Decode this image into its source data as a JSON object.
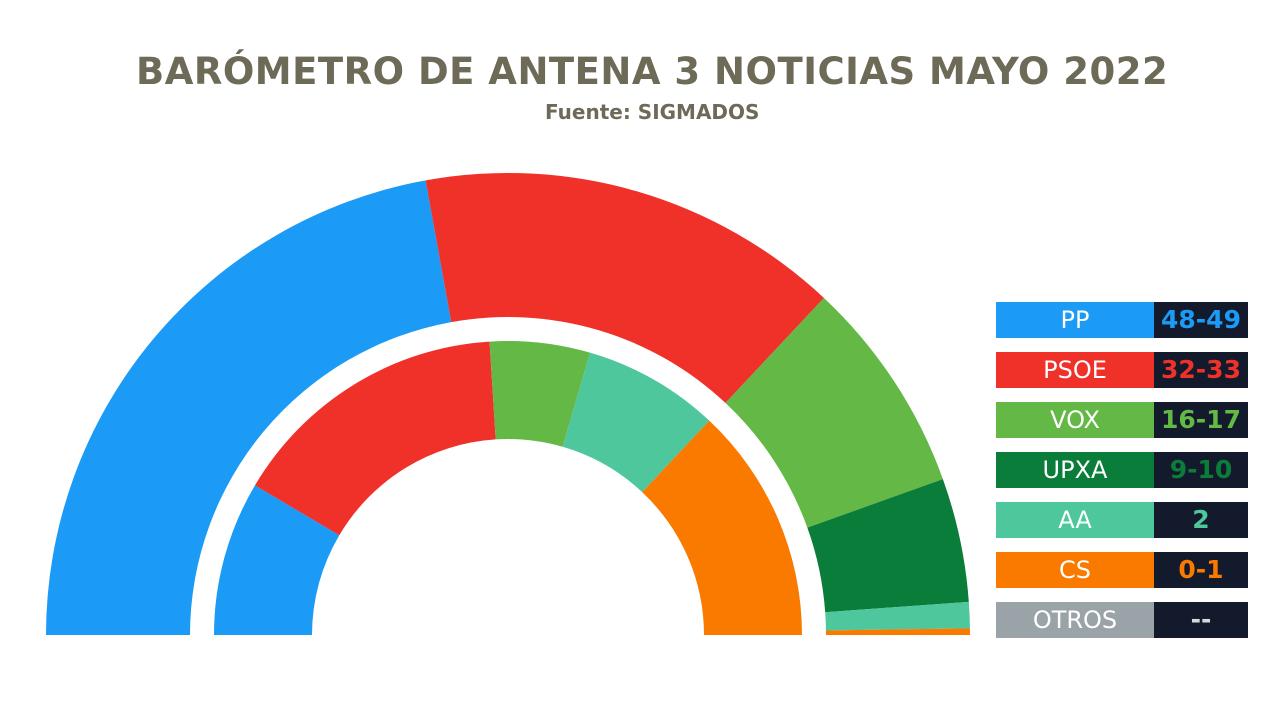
{
  "chart_data": {
    "type": "pie",
    "title": "BARÓMETRO DE ANTENA 3 NOTICIAS MAYO 2022",
    "subtitle": "Fuente: SIGMADOS",
    "rings": [
      {
        "ring": "outer",
        "series": [
          {
            "name": "PP",
            "color": "#1b9af6",
            "value": 48.5
          },
          {
            "name": "PSOE",
            "color": "#ef3129",
            "value": 32.5
          },
          {
            "name": "VOX",
            "color": "#64b846",
            "value": 16.5
          },
          {
            "name": "UPXA",
            "color": "#0b7d3a",
            "value": 9.5
          },
          {
            "name": "AA",
            "color": "#4dc79b",
            "value": 2
          },
          {
            "name": "CS",
            "color": "#fa7a00",
            "value": 0.5
          },
          {
            "name": "OTROS",
            "color": "#9aa3a8",
            "value": 0
          }
        ]
      },
      {
        "ring": "inner",
        "series": [
          {
            "name": "PP",
            "color": "#1b9af6",
            "value": 17
          },
          {
            "name": "PSOE",
            "color": "#ef3129",
            "value": 31
          },
          {
            "name": "VOX",
            "color": "#64b846",
            "value": 11
          },
          {
            "name": "AA",
            "color": "#4dc79b",
            "value": 15
          },
          {
            "name": "CS",
            "color": "#fa7a00",
            "value": 26
          }
        ]
      }
    ],
    "legend": [
      {
        "party": "PP",
        "seats": "48-49",
        "color": "#1b9af6"
      },
      {
        "party": "PSOE",
        "seats": "32-33",
        "color": "#ef3129"
      },
      {
        "party": "VOX",
        "seats": "16-17",
        "color": "#64b846"
      },
      {
        "party": "UPXA",
        "seats": "9-10",
        "color": "#0b7d3a"
      },
      {
        "party": "AA",
        "seats": "2",
        "color": "#4dc79b"
      },
      {
        "party": "CS",
        "seats": "0-1",
        "color": "#fa7a00"
      },
      {
        "party": "OTROS",
        "seats": "--",
        "color": "#9aa3a8"
      }
    ],
    "legend_position": "right"
  }
}
